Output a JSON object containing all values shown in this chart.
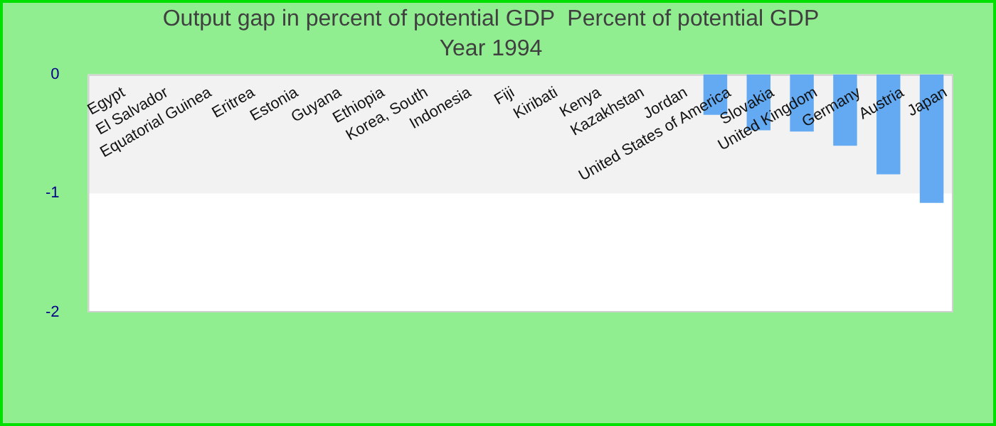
{
  "chart_data": {
    "type": "bar",
    "title": "Output gap in percent of potential GDP  Percent of potential GDP",
    "subtitle": "Year 1994",
    "categories": [
      "Egypt",
      "El Salvador",
      "Equatorial Guinea",
      "Eritrea",
      "Estonia",
      "Guyana",
      "Ethiopia",
      "Korea, South",
      "Indonesia",
      "Fiji",
      "Kiribati",
      "Kenya",
      "Kazakhstan",
      "Jordan",
      "United States of America",
      "Slovakia",
      "United Kingdom",
      "Germany",
      "Austria",
      "Japan"
    ],
    "values": [
      null,
      null,
      null,
      null,
      null,
      null,
      null,
      null,
      null,
      null,
      null,
      null,
      null,
      null,
      -0.34,
      -0.47,
      -0.48,
      -0.6,
      -0.84,
      -1.08
    ],
    "color": "#63aaf2",
    "ylim": [
      -2,
      0
    ],
    "yticks": [
      0,
      -1,
      -2
    ],
    "bands": [
      {
        "axis": "y",
        "from": 0,
        "to": -1,
        "color": "#f2f2f2"
      }
    ],
    "grid": false,
    "legend": false
  }
}
